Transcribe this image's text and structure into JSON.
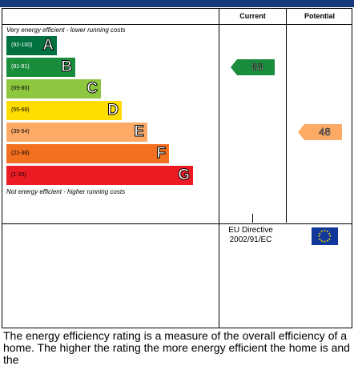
{
  "header": {
    "current_label": "Current",
    "potential_label": "Potential"
  },
  "captions": {
    "top": "Very energy efficient - lower running costs",
    "bottom": "Not energy efficient - higher running costs"
  },
  "bands": [
    {
      "range": "(92-100)",
      "letter": "A",
      "color": "#00723f"
    },
    {
      "range": "(81-91)",
      "letter": "B",
      "color": "#1a8d3d"
    },
    {
      "range": "(69-80)",
      "letter": "C",
      "color": "#8dc63f"
    },
    {
      "range": "(55-68)",
      "letter": "D",
      "color": "#ffdd00"
    },
    {
      "range": "(39-54)",
      "letter": "E",
      "color": "#fcaa65"
    },
    {
      "range": "(21-38)",
      "letter": "F",
      "color": "#f37021"
    },
    {
      "range": "(1-20)",
      "letter": "G",
      "color": "#ed1c24"
    }
  ],
  "ratings": {
    "current": {
      "value": "88",
      "band": "B",
      "color": "#1a8d3d"
    },
    "potential": {
      "value": "48",
      "band": "E",
      "color": "#fcaa65"
    }
  },
  "footer": {
    "directive_line1": "EU Directive",
    "directive_line2": "2002/91/EC",
    "flag_icon": "eu-flag-icon"
  },
  "description": "The energy efficiency rating is a measure of the overall efficiency of a home. The higher the rating the more energy efficient the home is and the"
}
